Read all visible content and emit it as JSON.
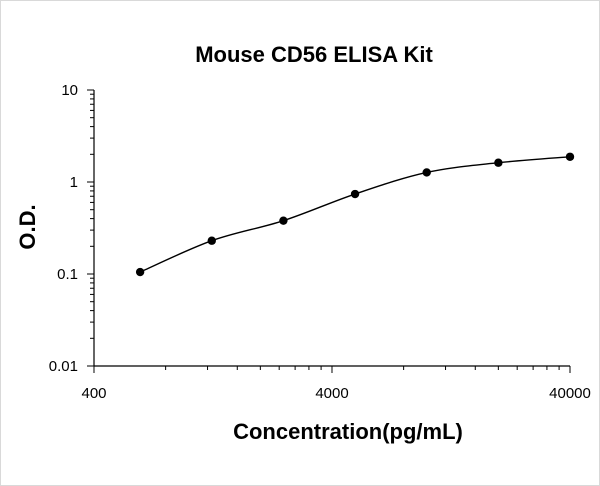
{
  "chart_data": {
    "type": "scatter",
    "title": "Mouse CD56 ELISA Kit",
    "xlabel": "Concentration(pg/mL)",
    "ylabel": "O.D.",
    "xscale": "log",
    "yscale": "log",
    "xlim": [
      400,
      40000
    ],
    "ylim": [
      0.01,
      10
    ],
    "x_tick_labels": [
      "400",
      "4000",
      "40000"
    ],
    "y_tick_labels": [
      "10",
      "1",
      "0.1",
      "0.01"
    ],
    "grid": false,
    "legend": "none",
    "fit_line": "smooth curve through points",
    "marker_color": "#000000",
    "series": [
      {
        "x": [
          625,
          1250,
          2500,
          5000,
          10000,
          20000,
          40000
        ],
        "y": [
          0.105,
          0.23,
          0.38,
          0.74,
          1.27,
          1.62,
          1.88
        ]
      }
    ]
  }
}
